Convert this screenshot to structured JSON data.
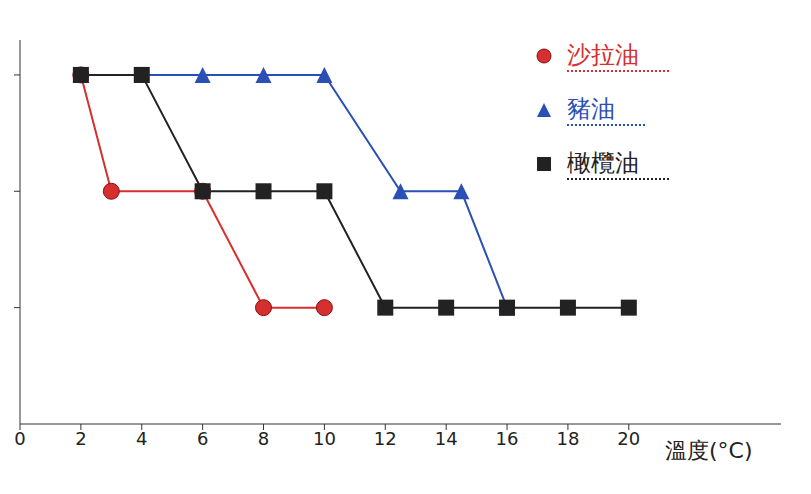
{
  "chart_data": {
    "type": "line",
    "x_label": "溫度(°C)",
    "xlim": [
      0,
      25
    ],
    "xticks": [
      0,
      2,
      4,
      6,
      8,
      10,
      12,
      14,
      16,
      18,
      20
    ],
    "ylim": [
      0,
      3.3
    ],
    "yticks": [
      1,
      2,
      3
    ],
    "tick_labels": "x",
    "grid": false,
    "legend": "upper right",
    "series": [
      {
        "name": "沙拉油",
        "color": "#d62f2f",
        "marker": "circle",
        "x": [
          2,
          3,
          6,
          8,
          10
        ],
        "values": [
          3,
          2,
          2,
          1,
          1
        ]
      },
      {
        "name": "豬油",
        "color": "#2a4fb5",
        "marker": "triangle",
        "x": [
          2,
          4,
          6,
          8,
          10,
          12.5,
          14.5,
          16
        ],
        "values": [
          3,
          3,
          3,
          3,
          3,
          2,
          2,
          1
        ]
      },
      {
        "name": "橄欖油",
        "color": "#222222",
        "marker": "square",
        "x": [
          2,
          4,
          6,
          8,
          10,
          12,
          14,
          16,
          18,
          20
        ],
        "values": [
          3,
          3,
          2,
          2,
          2,
          1,
          1,
          1,
          1,
          1
        ]
      }
    ]
  }
}
